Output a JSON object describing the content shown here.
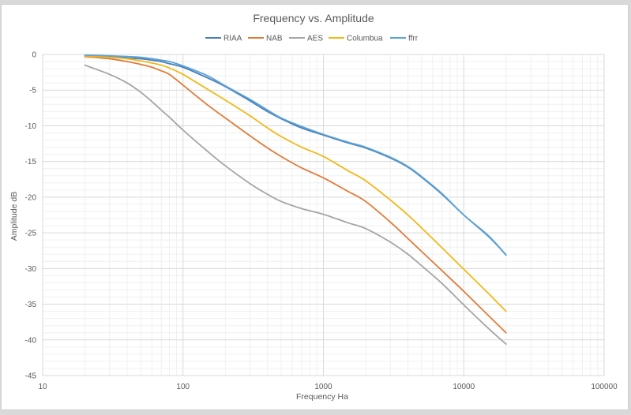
{
  "chart_data": {
    "type": "line",
    "title": "Frequency vs. Amplitude",
    "xlabel": "Frequency Ha",
    "ylabel": "Amplitude dB",
    "x_scale": "log",
    "xlim": [
      10,
      100000
    ],
    "ylim": [
      -45,
      0
    ],
    "x_ticks": [
      "10",
      "100",
      "1000",
      "10000",
      "100000"
    ],
    "y_ticks": [
      "0",
      "-5",
      "-10",
      "-15",
      "-20",
      "-25",
      "-30",
      "-35",
      "-40",
      "-45"
    ],
    "grid": true,
    "legend_position": "top",
    "x": [
      20,
      30,
      40,
      50,
      60,
      70,
      80,
      100,
      150,
      200,
      300,
      400,
      500,
      700,
      1000,
      1500,
      2000,
      3000,
      4000,
      5000,
      7000,
      10000,
      15000,
      20000
    ],
    "series": [
      {
        "name": "RIAA",
        "color": "#4a7ebb",
        "values": [
          -0.2,
          -0.3,
          -0.5,
          -0.6,
          -0.8,
          -1.0,
          -1.3,
          -1.8,
          -3.3,
          -4.5,
          -6.5,
          -8.0,
          -9.0,
          -10.3,
          -11.3,
          -12.4,
          -13.1,
          -14.5,
          -15.8,
          -17.2,
          -19.6,
          -22.5,
          -25.5,
          -28.1
        ]
      },
      {
        "name": "NAB",
        "color": "#e07b39",
        "values": [
          -0.3,
          -0.6,
          -1.0,
          -1.4,
          -1.8,
          -2.3,
          -2.8,
          -4.3,
          -7.1,
          -8.9,
          -11.4,
          -13.1,
          -14.3,
          -15.9,
          -17.3,
          -19.2,
          -20.6,
          -23.5,
          -25.8,
          -27.6,
          -30.3,
          -33.2,
          -36.6,
          -39.0
        ]
      },
      {
        "name": "AES",
        "color": "#a5a5a5",
        "values": [
          -1.5,
          -2.8,
          -4.0,
          -5.3,
          -6.6,
          -7.8,
          -8.8,
          -10.6,
          -13.6,
          -15.6,
          -18.1,
          -19.6,
          -20.6,
          -21.6,
          -22.4,
          -23.6,
          -24.4,
          -26.3,
          -28.0,
          -29.6,
          -32.1,
          -35.1,
          -38.4,
          -40.6
        ]
      },
      {
        "name": "Columbua",
        "color": "#f2b817",
        "values": [
          -0.2,
          -0.4,
          -0.6,
          -0.9,
          -1.2,
          -1.5,
          -1.9,
          -2.8,
          -4.9,
          -6.4,
          -8.6,
          -10.3,
          -11.5,
          -13.0,
          -14.3,
          -16.3,
          -17.7,
          -20.4,
          -22.5,
          -24.3,
          -27.1,
          -30.1,
          -33.5,
          -36.0
        ]
      },
      {
        "name": "ffrr",
        "color": "#5ba3d6",
        "values": [
          -0.1,
          -0.2,
          -0.3,
          -0.4,
          -0.6,
          -0.8,
          -1.0,
          -1.6,
          -3.0,
          -4.4,
          -6.3,
          -7.8,
          -8.9,
          -10.1,
          -11.2,
          -12.3,
          -13.0,
          -14.4,
          -15.7,
          -17.1,
          -19.5,
          -22.5,
          -25.4,
          -28.1
        ]
      }
    ]
  }
}
